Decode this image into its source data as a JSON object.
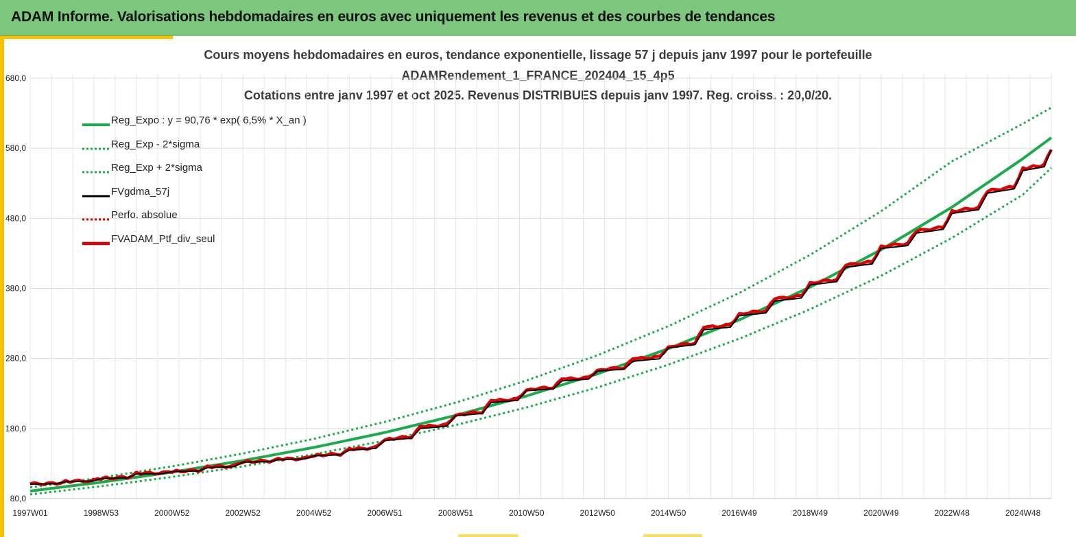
{
  "header": {
    "title": "ADAM Informe. Valorisations hebdomadaires en euros avec uniquement les revenus et des courbes de tendances"
  },
  "colors": {
    "header_bg": "#7dc67d",
    "accent": "#f7c000",
    "trend": "#1aab4b",
    "fvgdma": "#000000",
    "perfo": "#e00000",
    "portfolio": "#e00000"
  },
  "chart_data": {
    "type": "line",
    "title_lines": [
      "Cours moyens hebdomadaires  en euros, tendance exponentielle, lissage 57 j depuis janv 1997 pour le portefeuille",
      "ADAMRendement_1_FRANCE_202404_15_4p5",
      "Cotations  entre janv 1997 et oct 2025. Revenus DISTRIBUES depuis janv 1997. Reg. croiss. : 20,0/20."
    ],
    "xlabel": "",
    "ylabel": "",
    "x_start": 1997.0,
    "x_end": 2025.8,
    "ylim": [
      80,
      680
    ],
    "y_ticks": [
      80,
      180,
      280,
      380,
      480,
      580,
      680
    ],
    "y_tick_labels": [
      "80,0",
      "180,0",
      "280,0",
      "380,0",
      "480,0",
      "580,0",
      "680,0"
    ],
    "x_ticks": [
      1997.0,
      1999.0,
      2001.0,
      2003.0,
      2005.0,
      2007.0,
      2009.0,
      2011.0,
      2013.0,
      2015.0,
      2017.0,
      2019.0,
      2021.0,
      2023.0,
      2025.0
    ],
    "x_tick_labels": [
      "1997W01",
      "1998W53",
      "2000W52",
      "2002W52",
      "2004W52",
      "2006W51",
      "2008W51",
      "2010W50",
      "2012W50",
      "2014W50",
      "2016W49",
      "2018W49",
      "2020W49",
      "2022W48",
      "2024W48"
    ],
    "grid": true,
    "legend_position": "top-left",
    "series": [
      {
        "name": "Reg_Expo : y = 90,76 * exp( 6,5% *  X_an )",
        "style": "solid-thick",
        "color": "#1aab4b",
        "x": [
          1997.0,
          1999.0,
          2001.0,
          2003.0,
          2005.0,
          2007.0,
          2009.0,
          2011.0,
          2013.0,
          2015.0,
          2017.0,
          2019.0,
          2021.0,
          2023.0,
          2025.0,
          2025.8
        ],
        "y": [
          90.8,
          103.4,
          117.8,
          134.2,
          153.0,
          174.3,
          198.7,
          226.4,
          258.0,
          294.0,
          335.1,
          381.9,
          435.2,
          496.0,
          565.2,
          595.0
        ]
      },
      {
        "name": "Reg_Exp - 2*sigma",
        "style": "dotted",
        "color": "#1aab4b",
        "x": [
          1997.0,
          1999.0,
          2001.0,
          2003.0,
          2005.0,
          2007.0,
          2009.0,
          2011.0,
          2013.0,
          2015.0,
          2017.0,
          2019.0,
          2021.0,
          2023.0,
          2025.0,
          2025.8
        ],
        "y": [
          86.0,
          97.6,
          110.9,
          126.0,
          143.2,
          162.7,
          184.9,
          210.1,
          238.7,
          271.2,
          308.2,
          350.2,
          397.9,
          452.1,
          513.8,
          552.0
        ]
      },
      {
        "name": "Reg_Exp + 2*sigma",
        "style": "dotted",
        "color": "#1aab4b",
        "x": [
          1997.0,
          1999.0,
          2001.0,
          2003.0,
          2005.0,
          2007.0,
          2009.0,
          2011.0,
          2013.0,
          2015.0,
          2017.0,
          2019.0,
          2021.0,
          2023.0,
          2025.0,
          2025.8
        ],
        "y": [
          96.0,
          110.0,
          126.0,
          144.3,
          165.3,
          189.4,
          216.9,
          248.5,
          284.6,
          326.1,
          373.5,
          427.9,
          490.1,
          561.4,
          615.0,
          638.0
        ]
      },
      {
        "name": "FVgdma_57j",
        "style": "solid",
        "color": "#000000",
        "x": [
          1997.0,
          1998.0,
          1999.0,
          2000.0,
          2001.0,
          2002.0,
          2003.0,
          2004.0,
          2005.0,
          2006.0,
          2007.0,
          2008.0,
          2009.0,
          2010.0,
          2011.0,
          2012.0,
          2013.0,
          2014.0,
          2015.0,
          2016.0,
          2017.0,
          2018.0,
          2019.0,
          2020.0,
          2021.0,
          2022.0,
          2023.0,
          2024.0,
          2025.0,
          2025.8
        ],
        "y": [
          100.5,
          104.0,
          108.5,
          115.0,
          118.5,
          124.0,
          132.0,
          135.5,
          141.0,
          149.0,
          163.0,
          180.0,
          198.0,
          217.0,
          234.0,
          248.0,
          262.0,
          276.0,
          295.0,
          321.0,
          341.0,
          362.0,
          385.0,
          410.0,
          437.0,
          459.0,
          487.0,
          516.0,
          548.0,
          578.0
        ]
      },
      {
        "name": "Perfo. absolue",
        "style": "dotted",
        "color": "#e00000",
        "x": [
          1997.0,
          1998.0,
          1999.0,
          2000.0,
          2001.0,
          2002.0,
          2003.0,
          2004.0,
          2005.0,
          2006.0,
          2007.0,
          2008.0,
          2009.0,
          2010.0,
          2011.0,
          2012.0,
          2013.0,
          2014.0,
          2015.0,
          2016.0,
          2017.0,
          2018.0,
          2019.0,
          2020.0,
          2021.0,
          2022.0,
          2023.0,
          2024.0,
          2025.0,
          2025.8
        ],
        "y": [
          101.0,
          104.5,
          109.0,
          116.0,
          119.0,
          125.0,
          133.0,
          136.0,
          142.0,
          150.0,
          165.0,
          182.0,
          200.0,
          219.0,
          236.0,
          250.0,
          264.0,
          279.0,
          297.0,
          324.0,
          344.0,
          365.0,
          388.0,
          413.0,
          440.0,
          462.0,
          490.0,
          519.0,
          551.0,
          579.0
        ]
      },
      {
        "name": "FVADAM_Ptf_div_seul",
        "style": "solid-thick",
        "color": "#e00000",
        "x": [
          1997.0,
          1998.0,
          1999.0,
          2000.0,
          2001.0,
          2002.0,
          2003.0,
          2004.0,
          2005.0,
          2006.0,
          2007.0,
          2008.0,
          2009.0,
          2010.0,
          2011.0,
          2012.0,
          2013.0,
          2014.0,
          2015.0,
          2016.0,
          2017.0,
          2018.0,
          2019.0,
          2020.0,
          2021.0,
          2022.0,
          2023.0,
          2024.0,
          2025.0,
          2025.8
        ],
        "y": [
          101.0,
          104.5,
          109.0,
          116.0,
          119.0,
          125.0,
          133.0,
          136.0,
          142.0,
          150.0,
          165.0,
          182.0,
          200.0,
          219.0,
          236.0,
          250.0,
          264.0,
          279.0,
          297.0,
          324.0,
          344.0,
          365.0,
          388.0,
          413.0,
          440.0,
          462.0,
          490.0,
          519.0,
          551.0,
          579.0
        ]
      }
    ]
  }
}
